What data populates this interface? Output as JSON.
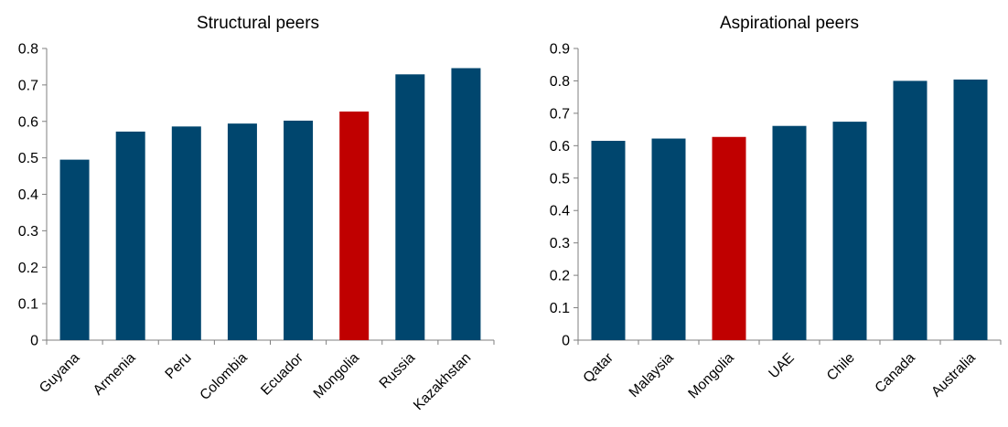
{
  "chart_data": [
    {
      "type": "bar",
      "title": "Structural peers",
      "xlabel": "",
      "ylabel": "",
      "ylim": [
        0,
        0.8
      ],
      "yticks": [
        "0",
        "0.1",
        "0.2",
        "0.3",
        "0.4",
        "0.5",
        "0.6",
        "0.7",
        "0.8"
      ],
      "categories": [
        "Guyana",
        "Armenia",
        "Peru",
        "Colombia",
        "Ecuador",
        "Mongolia",
        "Russia",
        "Kazakhstan"
      ],
      "values": [
        0.495,
        0.572,
        0.586,
        0.594,
        0.602,
        0.627,
        0.729,
        0.746
      ],
      "highlight_index": 5,
      "grid": false,
      "legend": "none"
    },
    {
      "type": "bar",
      "title": "Aspirational peers",
      "xlabel": "",
      "ylabel": "",
      "ylim": [
        0,
        0.9
      ],
      "yticks": [
        "0",
        "0.1",
        "0.2",
        "0.3",
        "0.4",
        "0.5",
        "0.6",
        "0.7",
        "0.8",
        "0.9"
      ],
      "categories": [
        "Qatar",
        "Malaysia",
        "Mongolia",
        "UAE",
        "Chile",
        "Canada",
        "Australia"
      ],
      "values": [
        0.615,
        0.622,
        0.627,
        0.661,
        0.674,
        0.8,
        0.804
      ],
      "highlight_index": 2,
      "grid": false,
      "legend": "none"
    }
  ],
  "colors": {
    "bar": "#00466E",
    "highlight": "#C00000",
    "axis": "#7F7F7F"
  }
}
